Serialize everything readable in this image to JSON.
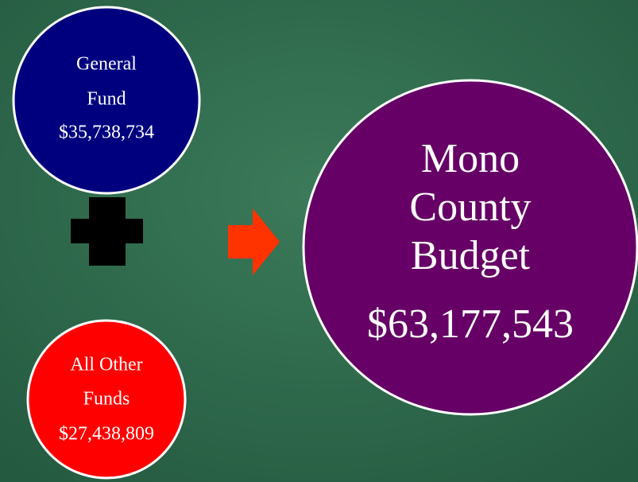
{
  "nodes": [
    {
      "lines": [
        "General",
        "Fund"
      ],
      "amount": "$35,738,734"
    },
    {
      "lines": [
        "All Other",
        "Funds"
      ],
      "amount": "$27,438,809"
    },
    {
      "lines": [
        "Mono",
        "County",
        "Budget"
      ],
      "amount": "$63,177,543"
    }
  ]
}
